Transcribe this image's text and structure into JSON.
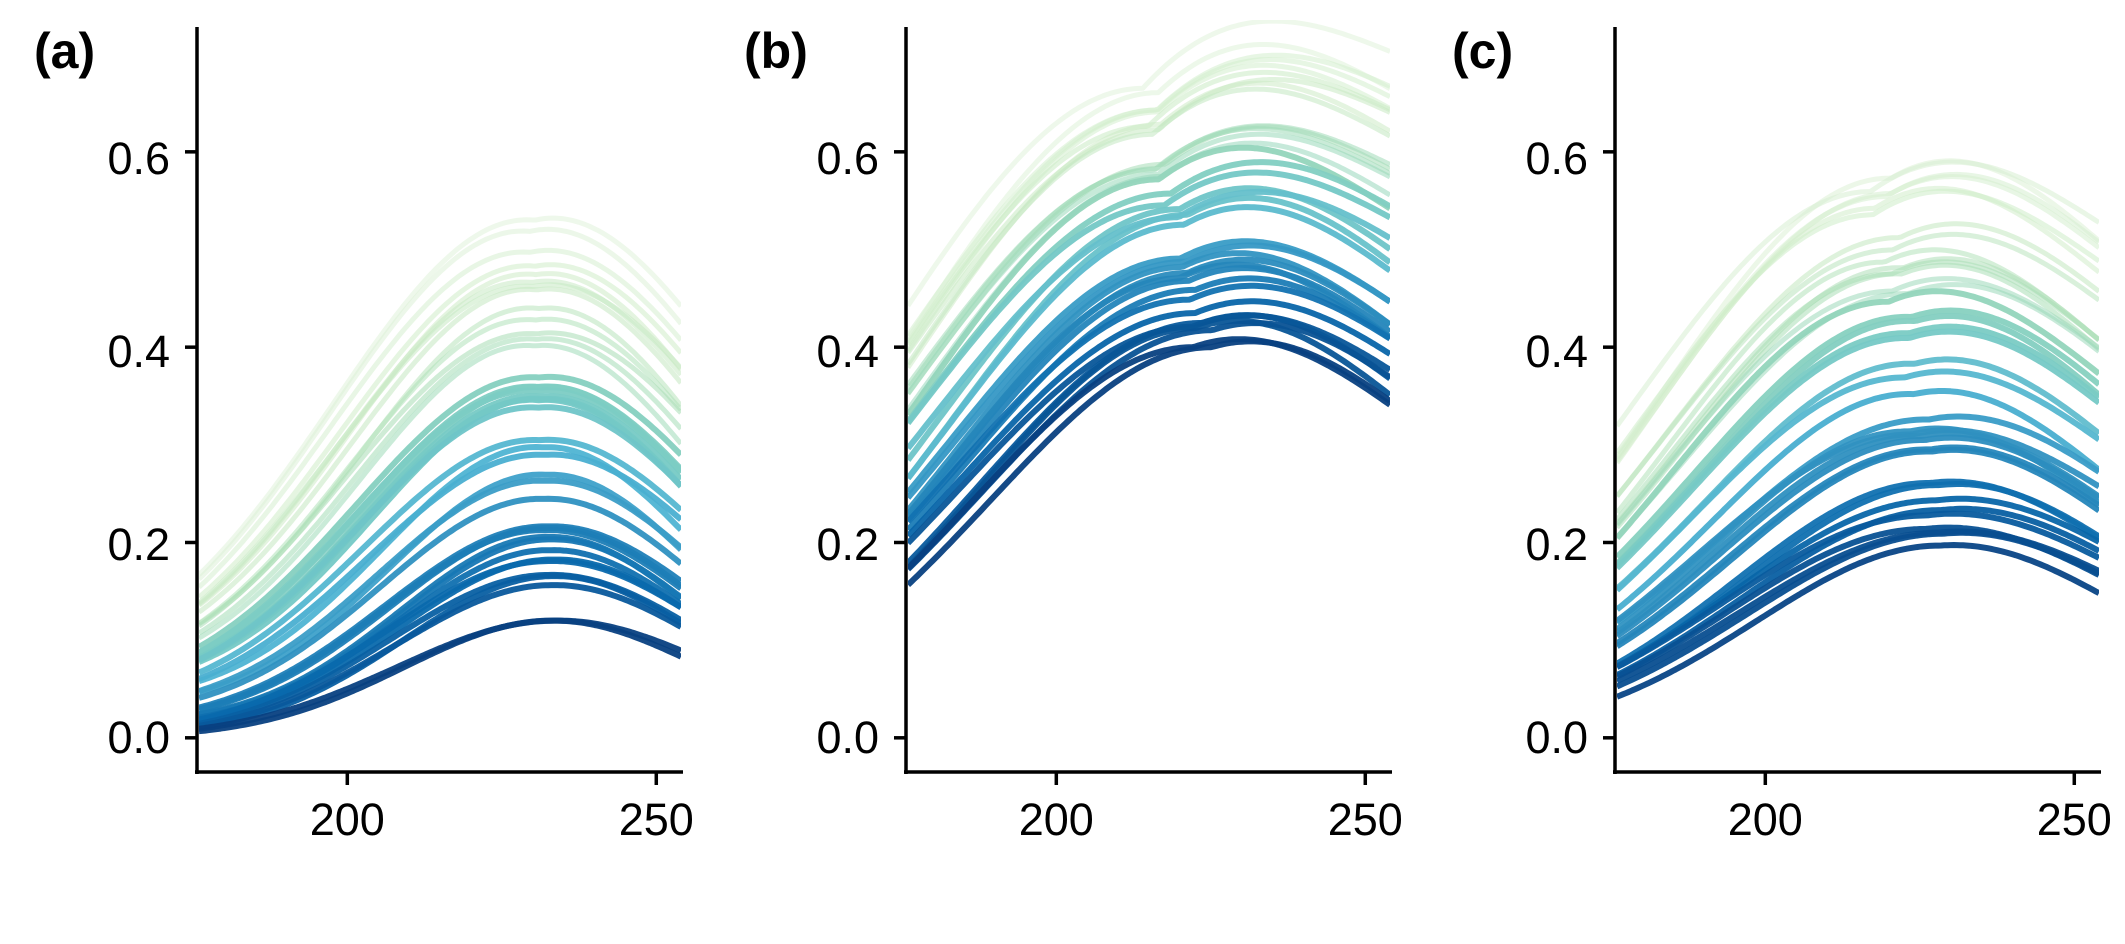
{
  "chart_data": [
    {
      "type": "line",
      "panel_label": "(a)",
      "xlim": [
        176,
        254
      ],
      "ylim": [
        -0.035,
        0.735
      ],
      "x_ticks": [
        200,
        250
      ],
      "y_ticks": [
        0.0,
        0.2,
        0.4,
        0.6
      ],
      "y_tick_labels": [
        "0.0",
        "0.2",
        "0.4",
        "0.6"
      ],
      "colormap": [
        "#e0f3db",
        "#ccebc5",
        "#a8ddb5",
        "#7bccc4",
        "#4eb3d3",
        "#2b8cbe",
        "#0868ac",
        "#084081"
      ],
      "series_count": 40,
      "series_shape": "gaussian",
      "peak_range": [
        0.12,
        0.53
      ],
      "peak_x_range": [
        229,
        234
      ],
      "width_range": [
        24,
        32
      ],
      "left_edge_range": [
        -0.01,
        0.19
      ],
      "series_order": "lighter series lie above darker series"
    },
    {
      "type": "line",
      "panel_label": "(b)",
      "xlim": [
        176,
        254
      ],
      "ylim": [
        -0.035,
        0.735
      ],
      "x_ticks": [
        200,
        250
      ],
      "y_ticks": [
        0.0,
        0.2,
        0.4,
        0.6
      ],
      "y_tick_labels": [
        "0.0",
        "0.2",
        "0.4",
        "0.6"
      ],
      "colormap": [
        "#e0f3db",
        "#ccebc5",
        "#a8ddb5",
        "#7bccc4",
        "#4eb3d3",
        "#2b8cbe",
        "#0868ac",
        "#084081"
      ],
      "series_count": 36,
      "series_shape": "gaussian",
      "peak_range": [
        0.4,
        0.665
      ],
      "peak_x_range": [
        213,
        226
      ],
      "width_range": [
        36,
        42
      ],
      "left_edge_range": [
        0.105,
        0.4
      ],
      "series_order": "lighter series lie above darker series"
    },
    {
      "type": "line",
      "panel_label": "(c)",
      "xlim": [
        176,
        254
      ],
      "ylim": [
        -0.035,
        0.735
      ],
      "x_ticks": [
        200,
        250
      ],
      "y_ticks": [
        0.0,
        0.2,
        0.4,
        0.6
      ],
      "y_tick_labels": [
        "0.0",
        "0.2",
        "0.4",
        "0.6"
      ],
      "colormap": [
        "#e0f3db",
        "#ccebc5",
        "#a8ddb5",
        "#7bccc4",
        "#4eb3d3",
        "#2b8cbe",
        "#0868ac",
        "#084081"
      ],
      "series_count": 38,
      "series_shape": "gaussian",
      "peak_range": [
        0.19,
        0.585
      ],
      "peak_x_range": [
        216,
        231
      ],
      "width_range": [
        31,
        38
      ],
      "left_edge_range": [
        0.03,
        0.3
      ],
      "series_order": "lighter series lie above darker series"
    }
  ]
}
